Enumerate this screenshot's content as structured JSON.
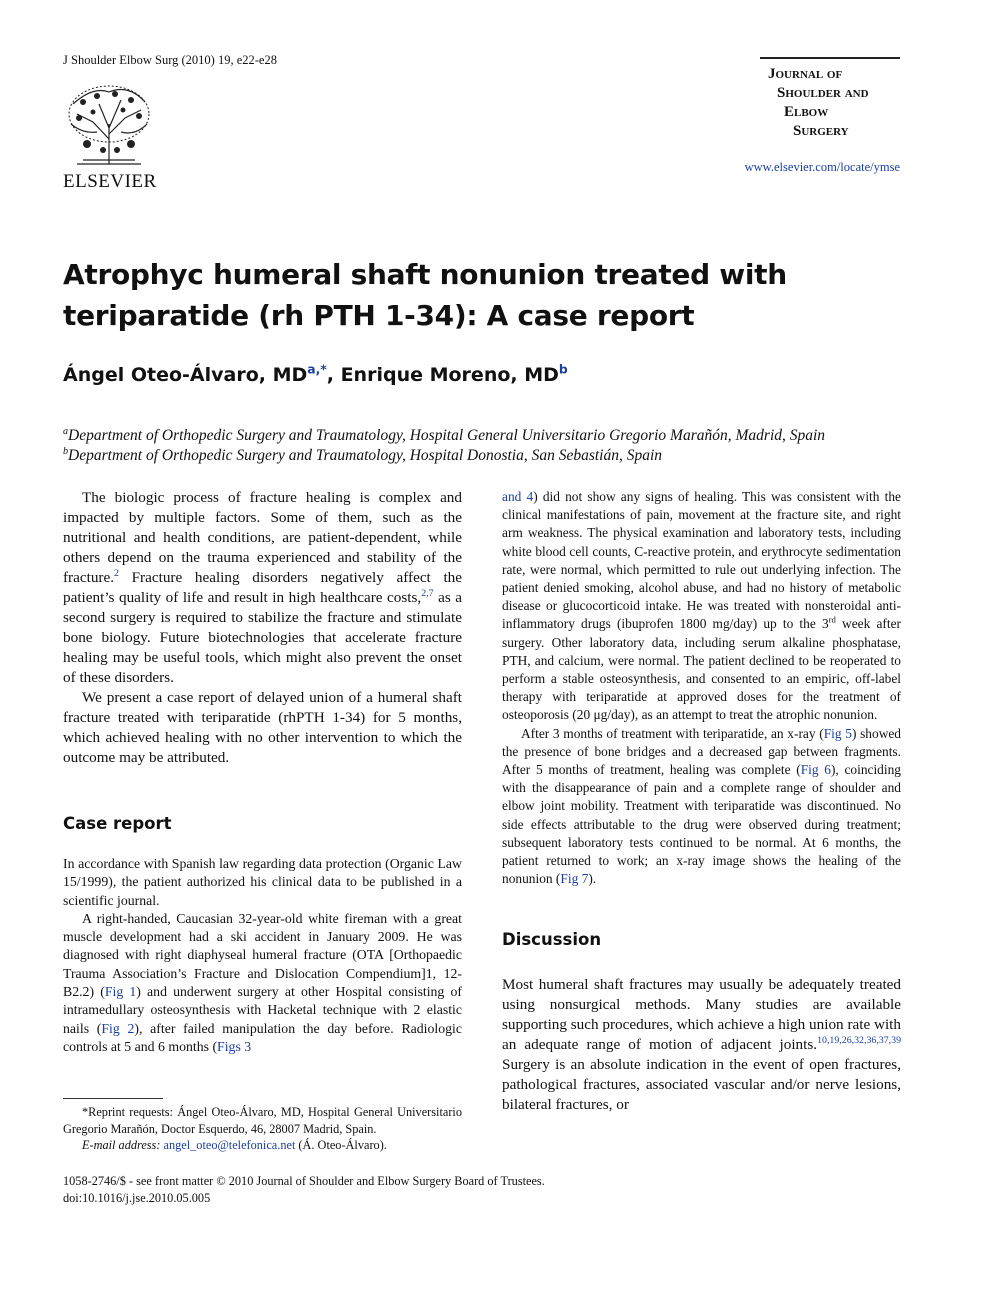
{
  "header": {
    "citation": "J Shoulder Elbow Surg (2010) 19, e22-e28",
    "publisher": "ELSEVIER",
    "journal_lines": [
      "Journal of",
      "Shoulder and",
      "Elbow",
      "Surgery"
    ],
    "url": "www.elsevier.com/locate/ymse"
  },
  "article": {
    "title": "Atrophyc humeral shaft nonunion treated with teriparatide (rh PTH 1-34): A case report",
    "authors": [
      {
        "text": "Ángel Oteo-Álvaro, MD"
      },
      {
        "cite": "a,*"
      },
      {
        "text": ", Enrique Moreno, MD"
      },
      {
        "cite": "b"
      }
    ],
    "affiliations": [
      [
        {
          "sup": "a"
        },
        {
          "text": "Department of Orthopedic Surgery and Traumatology, Hospital General Universitario Gregorio Marañón, Madrid, Spain"
        }
      ],
      [
        {
          "sup": "b"
        },
        {
          "text": "Department of Orthopedic Surgery and Traumatology, Hospital Donostia, San Sebastián, Spain"
        }
      ]
    ]
  },
  "body": {
    "left": [
      {
        "paragraphs": [
          [
            {
              "text": "The biologic process of fracture healing is complex and impacted by multiple factors. Some of them, such as the nutritional and health conditions, are patient-dependent, while others depend on the trauma experienced and stability of the fracture."
            },
            {
              "cite": "2"
            },
            {
              "text": " Fracture healing disorders negatively affect the patient’s quality of life and result in high healthcare costs,"
            },
            {
              "cite": "2,7"
            },
            {
              "text": " as a second surgery is required to stabilize the fracture and stimulate bone biology. Future biotechnologies that accelerate fracture healing may be useful tools, which might also prevent the onset of these disorders."
            }
          ],
          [
            {
              "text": "We present a case report of delayed union of a humeral shaft fracture treated with teriparatide (rhPTH 1-34) for 5 months, which achieved healing with no other intervention to which the outcome may be attributed."
            }
          ]
        ]
      },
      {
        "heading": "Case report",
        "paragraphs": [
          [
            {
              "text": "In accordance with Spanish law regarding data protection (Organic Law 15/1999), the patient authorized his clinical data to be published in a scientific journal."
            }
          ],
          [
            {
              "text": "A right-handed, Caucasian 32-year-old white fireman with a great muscle development had a ski accident in January 2009. He was diagnosed with right diaphyseal humeral fracture (OTA [Orthopaedic Trauma Association’s Fracture and Dislocation Compendium]1, 12-B2.2) ("
            },
            {
              "link": "Fig 1"
            },
            {
              "text": ") and underwent surgery at other Hospital consisting of intramedullary osteosynthesis with Hacketal technique with 2 elastic nails ("
            },
            {
              "link": "Fig 2"
            },
            {
              "text": "), after failed manipulation the day before. Radiologic controls at 5 and 6 months ("
            },
            {
              "link": "Figs 3"
            }
          ]
        ]
      }
    ],
    "right": [
      {
        "paragraphs": [
          [
            {
              "link": "and 4"
            },
            {
              "text": ") did not show any signs of healing. This was consistent with the clinical manifestations of pain, movement at the fracture site, and right arm weakness. The physical examination and laboratory tests, including white blood cell counts, C-reactive protein, and erythrocyte sedimentation rate, were normal, which permitted to rule out underlying infection. The patient denied smoking, alcohol abuse, and had no history of metabolic disease or glucocorticoid intake. He was treated with nonsteroidal anti-inflammatory drugs (ibuprofen 1800 mg/day) up to the 3"
            },
            {
              "sup": "rd"
            },
            {
              "text": " week after surgery. Other laboratory data, including serum alkaline phosphatase, PTH, and calcium, were normal. The patient declined to be reoperated to perform a stable osteosynthesis, and consented to an empiric, off-label therapy with teriparatide at approved doses for the treatment of osteoporosis (20 μg/day), as an attempt to treat the atrophic nonunion."
            }
          ],
          [
            {
              "text": "After 3 months of treatment with teriparatide, an x-ray ("
            },
            {
              "link": "Fig 5"
            },
            {
              "text": ") showed the presence of bone bridges and a decreased gap between fragments. After 5 months of treatment, healing was complete ("
            },
            {
              "link": "Fig 6"
            },
            {
              "text": "), coinciding with the disappearance of pain and a complete range of shoulder and elbow joint mobility. Treatment with teriparatide was discontinued. No side effects attributable to the drug were observed during treatment; subsequent laboratory tests continued to be normal. At 6 months, the patient returned to work; an x-ray image shows the healing of the nonunion ("
            },
            {
              "link": "Fig 7"
            },
            {
              "text": ")."
            }
          ]
        ]
      },
      {
        "heading": "Discussion",
        "paragraphs": [
          [
            {
              "text": "Most humeral shaft fractures may usually be adequately treated using nonsurgical methods. Many studies are available supporting such procedures, which achieve a high union rate with an adequate range of motion of adjacent joints."
            },
            {
              "cite": "10,19,26,32,36,37,39"
            },
            {
              "text": " Surgery is an absolute indication in the event of open fractures, pathological fractures, associated vascular and/or nerve lesions, bilateral fractures, or"
            }
          ]
        ]
      }
    ]
  },
  "footnote": [
    [
      {
        "text": "*Reprint requests: Ángel Oteo-Álvaro, MD, Hospital General Universitario Gregorio Marañón, Doctor Esquerdo, 46, 28007 Madrid, Spain."
      }
    ],
    [
      {
        "em": "E-mail address: "
      },
      {
        "link": "angel_oteo@telefonica.net"
      },
      {
        "text": " (Á. Oteo-Álvaro)."
      }
    ]
  ],
  "footer": [
    "1058-2746/$ - see front matter © 2010 Journal of Shoulder and Elbow Surgery Board of Trustees.",
    "doi:10.1016/j.jse.2010.05.005"
  ]
}
